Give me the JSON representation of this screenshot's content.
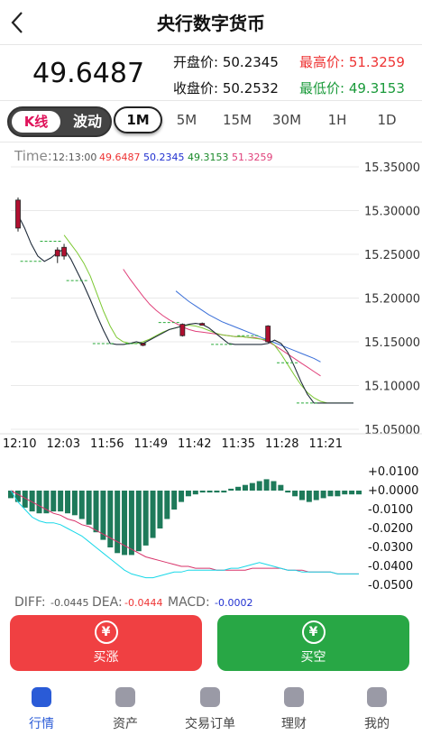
{
  "header": {
    "title": "央行数字货币",
    "back_icon": "back-arrow-icon"
  },
  "quote": {
    "last_price": "49.6487",
    "open_label": "开盘价:",
    "open_value": "50.2345",
    "high_label": "最高价:",
    "high_value": "51.3259",
    "close_label": "收盘价:",
    "close_value": "50.2532",
    "low_label": "最低价:",
    "low_value": "49.3153"
  },
  "mode_toggle": {
    "kline": "K线",
    "wave": "波动",
    "selected": "K线"
  },
  "timeframes": [
    "1M",
    "5M",
    "15M",
    "30M",
    "1H",
    "1D"
  ],
  "active_timeframe": "1M",
  "chart_data": [
    {
      "type": "candlestick",
      "info": {
        "time_label": "Time:",
        "time": "12:13:00",
        "v1": "49.6487",
        "v2": "50.2345",
        "v3": "49.3153",
        "v4": "51.3259"
      },
      "y_ticks": [
        "15.35000",
        "15.30000",
        "15.25000",
        "15.20000",
        "15.15000",
        "15.10000",
        "15.05000"
      ],
      "ylim": [
        15.05,
        15.35
      ],
      "x_ticks": [
        "12:10",
        "12:03",
        "11:56",
        "11:49",
        "11:42",
        "11:35",
        "11:28",
        "11:21"
      ],
      "candles": [
        {
          "i": 0,
          "open": 15.312,
          "close": 15.28,
          "high": 15.315,
          "low": 15.276,
          "color": "red"
        },
        {
          "i": 6,
          "open": 15.248,
          "close": 15.255,
          "high": 15.258,
          "low": 15.24,
          "color": "red"
        },
        {
          "i": 7,
          "open": 15.258,
          "close": 15.248,
          "high": 15.262,
          "low": 15.244,
          "color": "red"
        },
        {
          "i": 19,
          "open": 15.148,
          "close": 15.146,
          "high": 15.149,
          "low": 15.145,
          "color": "red"
        },
        {
          "i": 25,
          "open": 15.17,
          "close": 15.157,
          "high": 15.171,
          "low": 15.156,
          "color": "red"
        },
        {
          "i": 28,
          "open": 15.171,
          "close": 15.17,
          "high": 15.172,
          "low": 15.169,
          "color": "red"
        },
        {
          "i": 38,
          "open": 15.168,
          "close": 15.15,
          "high": 15.169,
          "low": 15.149,
          "color": "red"
        }
      ],
      "price_line": [
        15.295,
        15.28,
        15.262,
        15.248,
        15.242,
        15.246,
        15.252,
        15.256,
        15.245,
        15.23,
        15.215,
        15.198,
        15.18,
        15.163,
        15.148,
        15.147,
        15.147,
        15.148,
        15.15,
        15.148,
        15.152,
        15.156,
        15.16,
        15.164,
        15.166,
        15.168,
        15.17,
        15.171,
        15.17,
        15.166,
        15.16,
        15.154,
        15.148,
        15.147,
        15.147,
        15.147,
        15.147,
        15.147,
        15.148,
        15.152,
        15.148,
        15.138,
        15.122,
        15.105,
        15.09,
        15.08,
        15.08,
        15.08,
        15.08,
        15.08,
        15.08,
        15.08
      ],
      "ma_green": [
        null,
        null,
        null,
        null,
        null,
        null,
        null,
        15.272,
        15.262,
        15.252,
        15.24,
        15.225,
        15.205,
        15.185,
        15.168,
        15.155,
        15.15,
        15.148,
        15.148,
        15.15,
        15.153,
        15.157,
        15.161,
        15.164,
        15.166,
        15.168,
        15.169,
        15.168,
        15.166,
        15.163,
        15.16,
        15.158,
        15.157,
        15.156,
        15.156,
        15.155,
        15.154,
        15.153,
        15.152,
        15.146,
        15.136,
        15.124,
        15.112,
        15.101,
        15.092,
        15.086,
        15.082,
        15.08,
        15.08,
        15.08,
        15.08,
        15.08
      ],
      "ma_pink": [
        null,
        null,
        null,
        null,
        null,
        null,
        null,
        null,
        null,
        null,
        null,
        null,
        null,
        null,
        null,
        null,
        15.233,
        15.222,
        15.212,
        15.202,
        15.193,
        15.186,
        15.18,
        15.175,
        15.171,
        15.167,
        15.164,
        15.162,
        15.161,
        15.16,
        15.159,
        15.158,
        15.157,
        15.156,
        15.156,
        15.155,
        15.155,
        15.153,
        15.15,
        15.146,
        15.141,
        15.136,
        15.131,
        15.126,
        15.121,
        15.116,
        15.111
      ],
      "ma_blue": [
        null,
        null,
        null,
        null,
        null,
        null,
        null,
        null,
        null,
        null,
        null,
        null,
        null,
        null,
        null,
        null,
        null,
        null,
        null,
        null,
        null,
        null,
        null,
        null,
        15.208,
        15.202,
        15.196,
        15.191,
        15.186,
        15.181,
        15.177,
        15.173,
        15.17,
        15.167,
        15.164,
        15.161,
        15.158,
        15.155,
        15.152,
        15.149,
        15.146,
        15.143,
        15.14,
        15.137,
        15.134,
        15.131,
        15.127
      ],
      "dashes": [
        {
          "i": 2,
          "v": 15.242
        },
        {
          "i": 5,
          "v": 15.265
        },
        {
          "i": 9,
          "v": 15.22
        },
        {
          "i": 13,
          "v": 15.148
        },
        {
          "i": 18,
          "v": 15.148
        },
        {
          "i": 23,
          "v": 15.172
        },
        {
          "i": 31,
          "v": 15.147
        },
        {
          "i": 35,
          "v": 15.157
        },
        {
          "i": 41,
          "v": 15.126
        },
        {
          "i": 44,
          "v": 15.08
        }
      ]
    },
    {
      "type": "bar",
      "name": "MACD",
      "y_ticks": [
        "+0.0100",
        "+0.0000",
        "-0.0100",
        "-0.0200",
        "-0.0300",
        "-0.0400",
        "-0.0500"
      ],
      "ylim": [
        -0.05,
        0.01
      ],
      "histogram": [
        -0.004,
        -0.006,
        -0.009,
        -0.011,
        -0.012,
        -0.012,
        -0.011,
        -0.011,
        -0.012,
        -0.013,
        -0.015,
        -0.018,
        -0.022,
        -0.026,
        -0.03,
        -0.033,
        -0.034,
        -0.034,
        -0.032,
        -0.029,
        -0.025,
        -0.02,
        -0.015,
        -0.01,
        -0.006,
        -0.003,
        -0.002,
        -0.001,
        -0.001,
        -0.001,
        -0.001,
        0.001,
        0.002,
        0.003,
        0.004,
        0.005,
        0.006,
        0.005,
        0.003,
        -0.001,
        -0.003,
        -0.005,
        -0.006,
        -0.005,
        -0.004,
        -0.003,
        -0.003,
        -0.002,
        -0.002,
        -0.002
      ],
      "diff": [
        0.0,
        -0.006,
        -0.01,
        -0.014,
        -0.016,
        -0.017,
        -0.017,
        -0.018,
        -0.02,
        -0.022,
        -0.024,
        -0.027,
        -0.03,
        -0.033,
        -0.036,
        -0.039,
        -0.042,
        -0.044,
        -0.045,
        -0.046,
        -0.046,
        -0.045,
        -0.044,
        -0.043,
        -0.043,
        -0.042,
        -0.042,
        -0.042,
        -0.042,
        -0.042,
        -0.042,
        -0.041,
        -0.041,
        -0.04,
        -0.039,
        -0.038,
        -0.039,
        -0.04,
        -0.041,
        -0.042,
        -0.042,
        -0.043,
        -0.043,
        -0.043,
        -0.043,
        -0.043,
        -0.044,
        -0.044,
        -0.044,
        -0.044
      ],
      "dea": [
        0.0,
        -0.002,
        -0.004,
        -0.006,
        -0.008,
        -0.01,
        -0.012,
        -0.013,
        -0.015,
        -0.016,
        -0.018,
        -0.019,
        -0.021,
        -0.023,
        -0.025,
        -0.027,
        -0.029,
        -0.031,
        -0.033,
        -0.035,
        -0.036,
        -0.037,
        -0.038,
        -0.039,
        -0.04,
        -0.04,
        -0.041,
        -0.041,
        -0.041,
        -0.042,
        -0.042,
        -0.042,
        -0.042,
        -0.042,
        -0.041,
        -0.041,
        -0.041,
        -0.041,
        -0.041,
        -0.042,
        -0.042,
        -0.042,
        -0.043,
        -0.043,
        -0.043,
        -0.043,
        -0.044,
        -0.044,
        -0.044,
        -0.044
      ]
    }
  ],
  "indicators": {
    "diff_label": "DIFF:",
    "diff_value": "-0.0445",
    "dea_label": "DEA:",
    "dea_value": "-0.0444",
    "macd_label": "MACD:",
    "macd_value": "-0.0002"
  },
  "actions": {
    "buy_up": "买涨",
    "buy_down": "买空",
    "currency_symbol": "¥"
  },
  "colors": {
    "buy_up": "#f04042",
    "buy_down": "#28a745",
    "up": "#e33333",
    "down": "#1a9a3a",
    "macd_bar": "#1e7a5a",
    "nav_active": "#2a5bd7"
  },
  "nav": [
    {
      "label": "行情",
      "icon": "market-icon",
      "active": true
    },
    {
      "label": "资产",
      "icon": "assets-icon",
      "active": false
    },
    {
      "label": "交易订单",
      "icon": "orders-icon",
      "active": false
    },
    {
      "label": "理财",
      "icon": "wallet-icon",
      "active": false
    },
    {
      "label": "我的",
      "icon": "profile-icon",
      "active": false
    }
  ]
}
